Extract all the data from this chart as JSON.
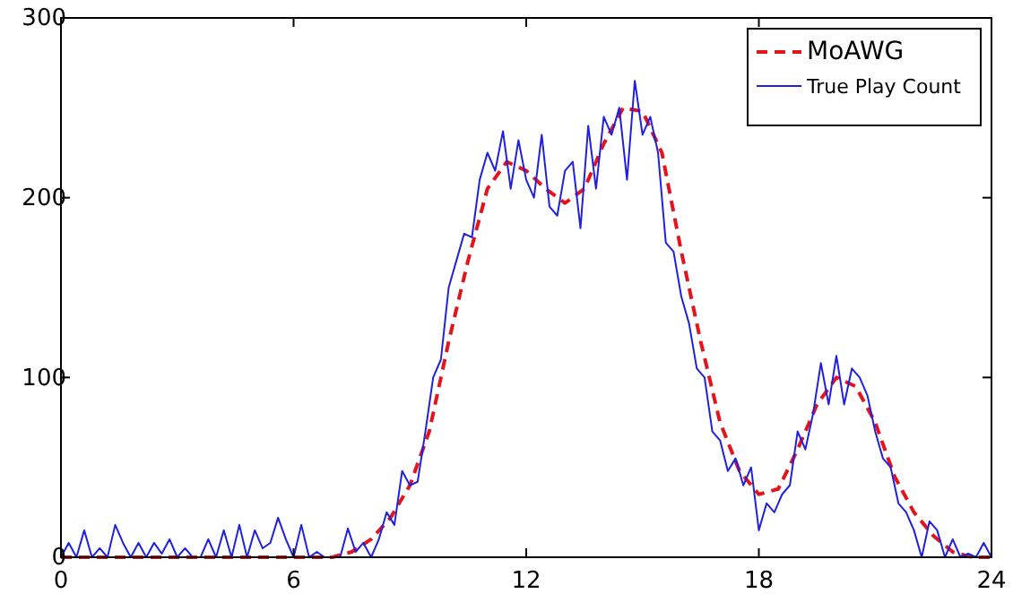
{
  "chart_data": {
    "type": "line",
    "xlim": [
      0,
      24
    ],
    "ylim": [
      0,
      300
    ],
    "xticks": [
      0,
      6,
      12,
      18,
      24
    ],
    "yticks": [
      0,
      100,
      200,
      300
    ],
    "grid": false,
    "legend": "top right",
    "series": [
      {
        "name": "MoAWG",
        "color": "#e4141c",
        "line_style": "dashed",
        "x": [
          0,
          6,
          7,
          7.5,
          8,
          8.5,
          9,
          9.5,
          10,
          10.5,
          11,
          11.5,
          12,
          12.5,
          13,
          13.5,
          14,
          14.5,
          15,
          15.5,
          16,
          16.5,
          17,
          17.5,
          18,
          18.5,
          19,
          19.5,
          20,
          20.5,
          21,
          21.5,
          22,
          22.5,
          23,
          23.5,
          24
        ],
        "values": [
          0,
          0,
          0,
          3,
          10,
          22,
          40,
          70,
          120,
          165,
          205,
          220,
          215,
          205,
          197,
          205,
          230,
          250,
          248,
          225,
          170,
          120,
          75,
          48,
          35,
          38,
          60,
          85,
          100,
          95,
          75,
          45,
          25,
          12,
          3,
          0,
          0
        ]
      },
      {
        "name": "True Play Count",
        "color": "#2020e0",
        "line_style": "solid",
        "x": [
          0,
          0.2,
          0.4,
          0.6,
          0.8,
          1,
          1.2,
          1.4,
          1.6,
          1.8,
          2,
          2.2,
          2.4,
          2.6,
          2.8,
          3,
          3.2,
          3.4,
          3.6,
          3.8,
          4,
          4.2,
          4.4,
          4.6,
          4.8,
          5,
          5.2,
          5.4,
          5.6,
          5.8,
          6,
          6.2,
          6.4,
          6.6,
          6.8,
          7,
          7.2,
          7.4,
          7.6,
          7.8,
          8,
          8.2,
          8.4,
          8.6,
          8.8,
          9,
          9.2,
          9.4,
          9.6,
          9.8,
          10,
          10.2,
          10.4,
          10.6,
          10.8,
          11,
          11.2,
          11.4,
          11.6,
          11.8,
          12,
          12.2,
          12.4,
          12.6,
          12.8,
          13,
          13.2,
          13.4,
          13.6,
          13.8,
          14,
          14.2,
          14.4,
          14.6,
          14.8,
          15,
          15.2,
          15.4,
          15.6,
          15.8,
          16,
          16.2,
          16.4,
          16.6,
          16.8,
          17,
          17.2,
          17.4,
          17.6,
          17.8,
          18,
          18.2,
          18.4,
          18.6,
          18.8,
          19,
          19.2,
          19.4,
          19.6,
          19.8,
          20,
          20.2,
          20.4,
          20.6,
          20.8,
          21,
          21.2,
          21.4,
          21.6,
          21.8,
          22,
          22.2,
          22.4,
          22.6,
          22.8,
          23,
          23.2,
          23.4,
          23.6,
          23.8,
          24
        ],
        "values": [
          0,
          8,
          0,
          15,
          0,
          5,
          0,
          18,
          8,
          0,
          8,
          0,
          8,
          2,
          10,
          0,
          5,
          0,
          0,
          10,
          0,
          15,
          0,
          18,
          0,
          15,
          5,
          8,
          22,
          10,
          0,
          18,
          0,
          3,
          0,
          0,
          0,
          16,
          3,
          8,
          0,
          10,
          25,
          18,
          48,
          40,
          42,
          70,
          100,
          110,
          150,
          165,
          180,
          178,
          210,
          225,
          215,
          237,
          205,
          232,
          210,
          200,
          235,
          195,
          190,
          215,
          220,
          183,
          240,
          205,
          245,
          235,
          250,
          210,
          265,
          235,
          245,
          225,
          175,
          170,
          145,
          130,
          105,
          100,
          70,
          65,
          48,
          55,
          40,
          50,
          15,
          30,
          25,
          35,
          40,
          70,
          60,
          80,
          108,
          85,
          112,
          85,
          105,
          100,
          90,
          70,
          55,
          50,
          30,
          25,
          15,
          0,
          20,
          15,
          0,
          10,
          0,
          2,
          0,
          8,
          0
        ]
      }
    ]
  }
}
